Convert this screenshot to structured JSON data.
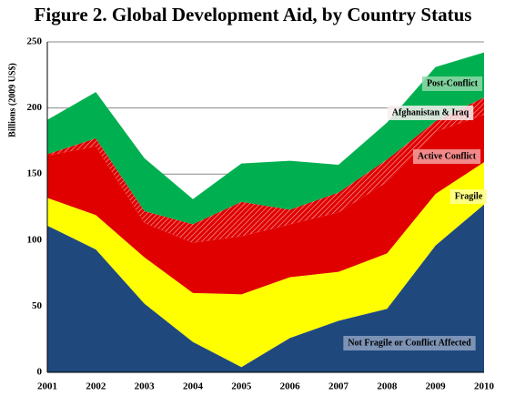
{
  "chart_data": {
    "type": "stacked_area",
    "title": "Figure 2. Global Development Aid, by Country Status",
    "y_label": "Billions (2009 US$)",
    "categories": [
      "2001",
      "2002",
      "2003",
      "2004",
      "2005",
      "2006",
      "2007",
      "2008",
      "2009",
      "2010"
    ],
    "series": [
      {
        "name": "Not Fragile or Conflict Affected",
        "color": "#1f497d",
        "values": [
          111,
          93,
          52,
          23,
          4,
          26,
          39,
          48,
          96,
          127
        ]
      },
      {
        "name": "Fragile",
        "color": "#ffff00",
        "values": [
          21,
          26,
          35,
          37,
          55,
          46,
          37,
          42,
          39,
          32
        ]
      },
      {
        "name": "Active Conflict",
        "color": "#e00000",
        "values": [
          32,
          52,
          26,
          38,
          44,
          40,
          45,
          54,
          47,
          36
        ]
      },
      {
        "name": "Afghanistan & Iraq",
        "color": "#e86060",
        "values": [
          1,
          6,
          9,
          14,
          26,
          11,
          15,
          17,
          8,
          13
        ]
      },
      {
        "name": "Post-Conflict",
        "color": "#00b050",
        "values": [
          26,
          35,
          40,
          19,
          29,
          37,
          21,
          28,
          41,
          34
        ]
      }
    ],
    "ylim": [
      0,
      250
    ],
    "yticks": [
      0,
      50,
      100,
      150,
      200,
      250
    ],
    "grid": true
  }
}
